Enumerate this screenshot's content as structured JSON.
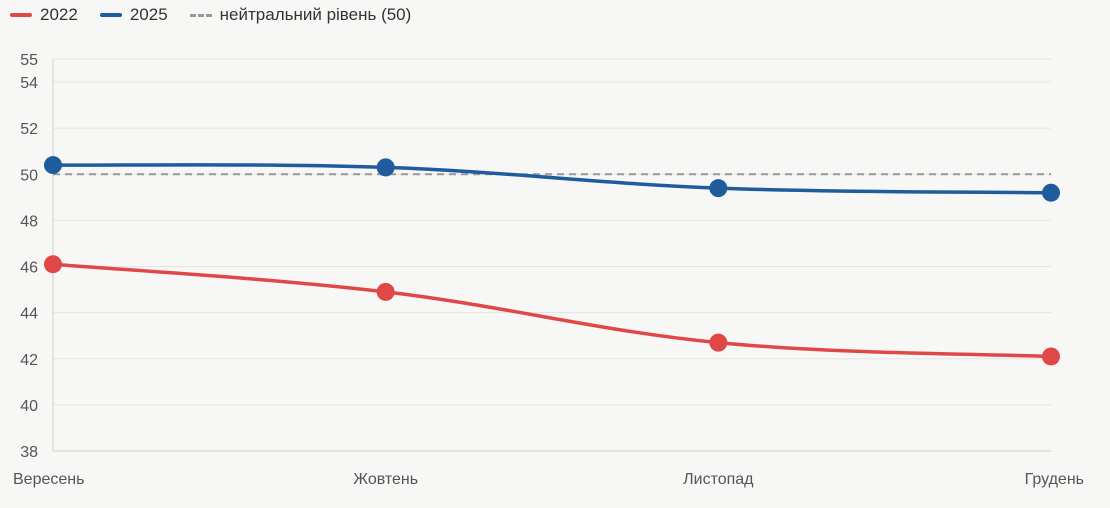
{
  "legend": {
    "s2022": "2022",
    "s2025": "2025",
    "neutral": "нейтральний рівень (50)"
  },
  "chart_data": {
    "type": "line",
    "categories": [
      "Вересень",
      "Жовтень",
      "Листопад",
      "Грудень"
    ],
    "series": [
      {
        "name": "2022",
        "color": "#e04848",
        "values": [
          46.1,
          44.9,
          42.7,
          42.1
        ]
      },
      {
        "name": "2025",
        "color": "#1f5c9e",
        "values": [
          50.4,
          50.3,
          49.4,
          49.2
        ]
      }
    ],
    "reference_line": {
      "name": "нейтральний рівень (50)",
      "value": 50,
      "color": "#999999",
      "style": "dashed"
    },
    "y_ticks": [
      38,
      40,
      42,
      44,
      46,
      48,
      50,
      52,
      54,
      55
    ],
    "ylim": [
      38,
      55
    ],
    "grid": true,
    "legend_position": "top-left",
    "title": "",
    "xlabel": "",
    "ylabel": ""
  }
}
